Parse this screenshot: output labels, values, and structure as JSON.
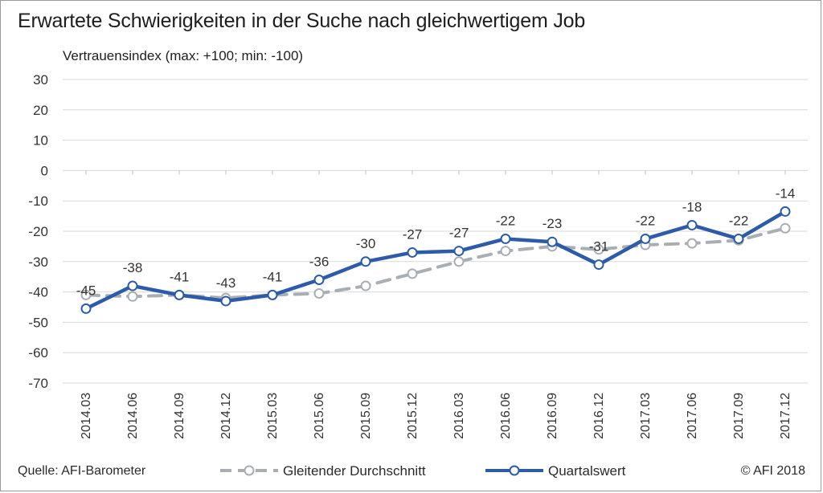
{
  "title": "Erwartete Schwierigkeiten in der Suche nach gleichwertigem Job",
  "source": "Quelle: AFI-Barometer",
  "copyright": "© AFI 2018",
  "colors": {
    "quartal": "#2E5BA8",
    "average": "#A9AEB5",
    "grid": "#D9D9D9",
    "text": "#333333"
  },
  "chart_data": {
    "type": "line",
    "ylabel": "Vertrauensindex (max: +100; min: -100)",
    "xlabel": "",
    "ylim": [
      -70,
      30
    ],
    "yticks": [
      30,
      20,
      10,
      0,
      -10,
      -20,
      -30,
      -40,
      -50,
      -60,
      -70
    ],
    "grid": true,
    "legend_position": "bottom",
    "categories": [
      "2014.03",
      "2014.06",
      "2014.09",
      "2014.12",
      "2015.03",
      "2015.06",
      "2015.09",
      "2015.12",
      "2016.03",
      "2016.06",
      "2016.09",
      "2016.12",
      "2017.03",
      "2017.06",
      "2017.09",
      "2017.12"
    ],
    "series": [
      {
        "name": "Gleitender Durchschnitt",
        "style": "dashed",
        "values": [
          -41,
          -41.5,
          -41,
          -42,
          -41,
          -40.5,
          -38,
          -34,
          -30,
          -26.5,
          -25,
          -26,
          -24.5,
          -24,
          -23,
          -19
        ]
      },
      {
        "name": "Quartalswert",
        "style": "solid",
        "values": [
          -45.5,
          -38,
          -41,
          -43,
          -41,
          -36,
          -30,
          -27,
          -26.5,
          -22.5,
          -23.5,
          -31,
          -22.5,
          -18,
          -22.5,
          -13.5
        ],
        "data_labels": [
          "-45",
          "-38",
          "-41",
          "-43",
          "-41",
          "-36",
          "-30",
          "-27",
          "-27",
          "-22",
          "-23",
          "-31",
          "-22",
          "-18",
          "-22",
          "-14"
        ]
      }
    ]
  }
}
